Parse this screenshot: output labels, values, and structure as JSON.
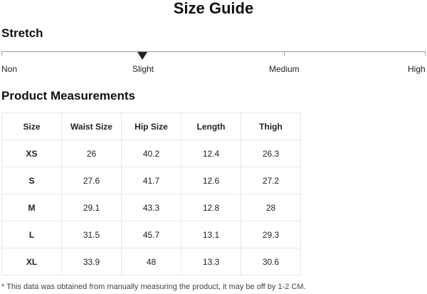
{
  "title": "Size Guide",
  "stretch": {
    "heading": "Stretch",
    "levels": [
      "Non",
      "Slight",
      "Medium",
      "High"
    ],
    "selected": "Slight"
  },
  "measurements": {
    "heading": "Product Measurements",
    "columns": [
      "Size",
      "Waist Size",
      "Hip Size",
      "Length",
      "Thigh"
    ],
    "rows": [
      [
        "XS",
        "26",
        "40.2",
        "12.4",
        "26.3"
      ],
      [
        "S",
        "27.6",
        "41.7",
        "12.6",
        "27.2"
      ],
      [
        "M",
        "29.1",
        "43.3",
        "12.8",
        "28"
      ],
      [
        "L",
        "31.5",
        "45.7",
        "13.1",
        "29.3"
      ],
      [
        "XL",
        "33.9",
        "48",
        "13.3",
        "30.6"
      ]
    ]
  },
  "note": "* This data was obtained from manually measuring the product, it may be off by 1-2 CM."
}
